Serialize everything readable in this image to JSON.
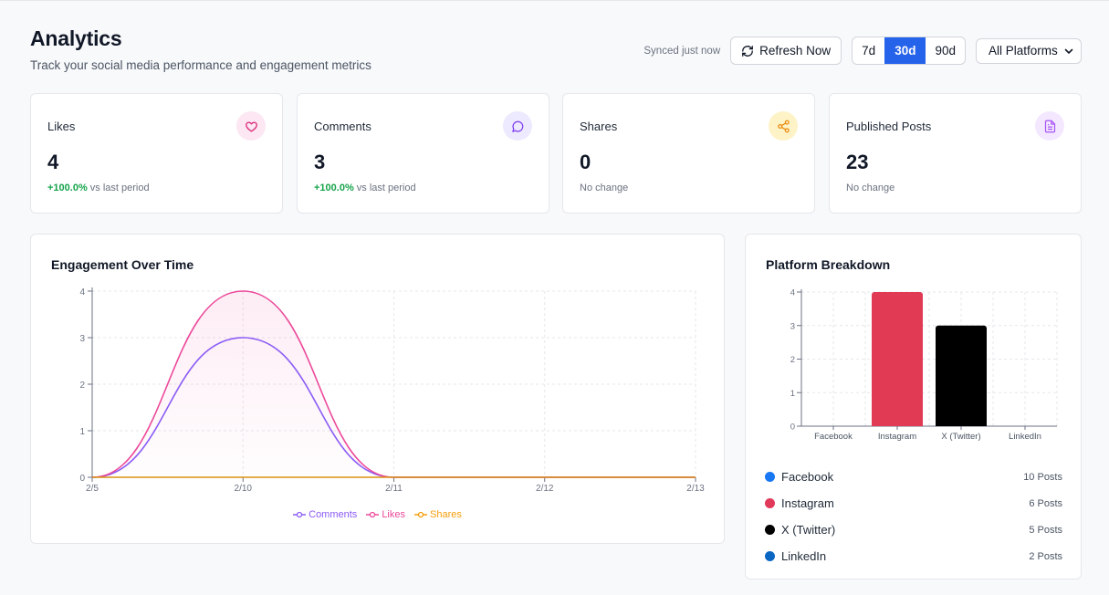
{
  "header": {
    "title": "Analytics",
    "subtitle": "Track your social media performance and engagement metrics"
  },
  "controls": {
    "synced": "Synced just now",
    "refresh_label": "Refresh Now",
    "ranges": [
      "7d",
      "30d",
      "90d"
    ],
    "active_range": "30d",
    "platform_filter": "All Platforms"
  },
  "stats": [
    {
      "label": "Likes",
      "value": "4",
      "change": "+100.0%",
      "change_suffix": "vs last period",
      "icon": "heart-icon",
      "icon_color": "#db2777",
      "icon_bg": "#fce7f3"
    },
    {
      "label": "Comments",
      "value": "3",
      "change": "+100.0%",
      "change_suffix": "vs last period",
      "icon": "message-circle-icon",
      "icon_color": "#7c3aed",
      "icon_bg": "#ede9fe"
    },
    {
      "label": "Shares",
      "value": "0",
      "change": "",
      "change_suffix": "No change",
      "icon": "share-icon",
      "icon_color": "#ea8a0c",
      "icon_bg": "#fef3c7"
    },
    {
      "label": "Published Posts",
      "value": "23",
      "change": "",
      "change_suffix": "No change",
      "icon": "file-text-icon",
      "icon_color": "#a855f7",
      "icon_bg": "#f3e8ff"
    }
  ],
  "engagement": {
    "title": "Engagement Over Time",
    "legend": [
      {
        "name": "Comments",
        "color": "#8b5cf6"
      },
      {
        "name": "Likes",
        "color": "#ec4899"
      },
      {
        "name": "Shares",
        "color": "#f59e0b"
      }
    ]
  },
  "breakdown": {
    "title": "Platform Breakdown",
    "platforms": [
      {
        "name": "Facebook",
        "posts": "10 Posts",
        "color": "#1877f2"
      },
      {
        "name": "Instagram",
        "posts": "6 Posts",
        "color": "#e1395a"
      },
      {
        "name": "X (Twitter)",
        "posts": "5 Posts",
        "color": "#000000"
      },
      {
        "name": "LinkedIn",
        "posts": "2 Posts",
        "color": "#0a66c2"
      }
    ]
  },
  "chart_data": [
    {
      "type": "line",
      "title": "Engagement Over Time",
      "x": [
        "2/5",
        "2/10",
        "2/11",
        "2/12",
        "2/13"
      ],
      "x_ticks": [
        "2/5",
        "2/10",
        "2/11",
        "2/12",
        "2/13"
      ],
      "series": [
        {
          "name": "Comments",
          "values": [
            0,
            3,
            0,
            0,
            0
          ]
        },
        {
          "name": "Likes",
          "values": [
            0,
            4,
            0,
            0,
            0
          ]
        },
        {
          "name": "Shares",
          "values": [
            0,
            0,
            0,
            0,
            0
          ]
        }
      ],
      "y_ticks": [
        0,
        1,
        2,
        3,
        4
      ],
      "ylim": [
        0,
        4
      ],
      "grid": true,
      "legend": "bottom-center"
    },
    {
      "type": "bar",
      "title": "Platform Breakdown",
      "categories": [
        "Facebook",
        "Instagram",
        "X (Twitter)",
        "LinkedIn"
      ],
      "values": [
        0,
        4,
        3,
        0
      ],
      "colors": [
        "#1877f2",
        "#e03a55",
        "#000000",
        "#0a66c2"
      ],
      "y_ticks": [
        0,
        1,
        2,
        3,
        4
      ],
      "ylim": [
        0,
        4
      ],
      "grid": true
    }
  ]
}
